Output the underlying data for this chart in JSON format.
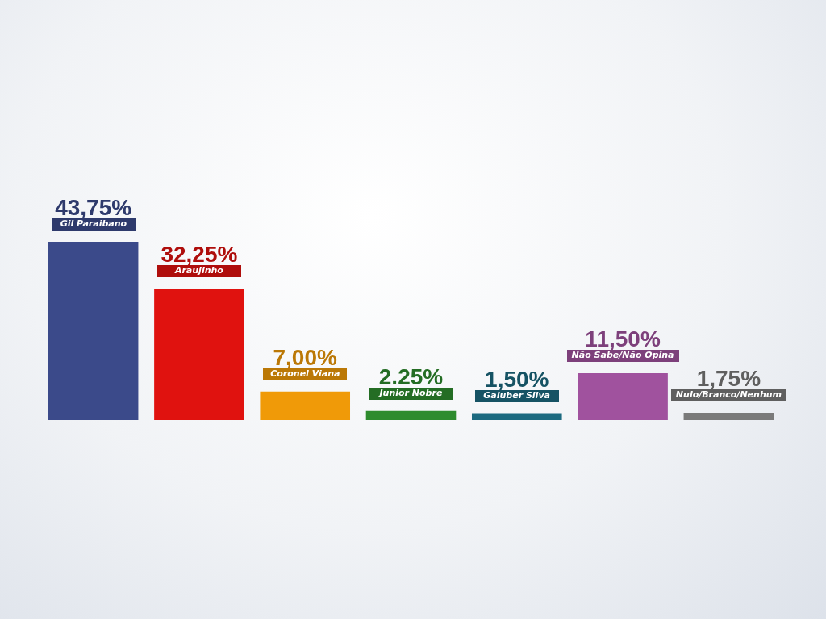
{
  "chart_data": {
    "type": "bar",
    "categories": [
      "Gil Paraibano",
      "Araujinho",
      "Coronel Viana",
      "Junior Nobre",
      "Galuber Silva",
      "Não Sabe/Não Opina",
      "Nulo/Branco/Nenhum"
    ],
    "values": [
      43.75,
      32.25,
      7.0,
      2.25,
      1.5,
      11.5,
      1.75
    ],
    "value_labels": [
      "43,75%",
      "32,25%",
      "7,00%",
      "2.25%",
      "1,50%",
      "11,50%",
      "1,75%"
    ],
    "colors": [
      "#3b4a8a",
      "#e0120f",
      "#f09a08",
      "#2e8c2e",
      "#1c6a80",
      "#a0529e",
      "#7a7a7a"
    ],
    "tick_labels": "x"
  }
}
